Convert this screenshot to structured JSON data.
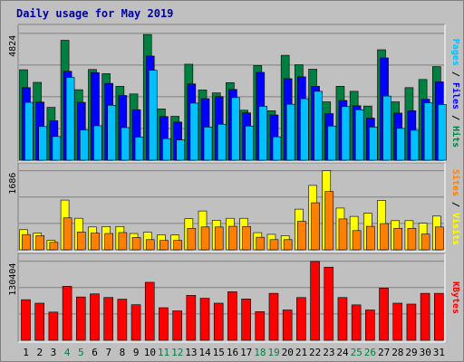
{
  "title": "Daily usage for May 2019",
  "colors": {
    "hits": "#008040",
    "files": "#0000ff",
    "pages": "#00c0ff",
    "visits": "#ffff00",
    "sites": "#ff8000",
    "kbytes": "#ff0000",
    "weekend_label": "#008040",
    "weekday_label": "#000000"
  },
  "chart_data": [
    {
      "type": "bar",
      "title": "",
      "y_max_label": "4824",
      "ylim": [
        0,
        4824
      ],
      "categories": [
        "1",
        "2",
        "3",
        "4",
        "5",
        "6",
        "7",
        "8",
        "9",
        "10",
        "11",
        "12",
        "13",
        "14",
        "15",
        "16",
        "17",
        "18",
        "19",
        "20",
        "21",
        "22",
        "23",
        "24",
        "25",
        "26",
        "27",
        "28",
        "29",
        "30",
        "31"
      ],
      "legend": [
        "Pages",
        "Files",
        "Hits"
      ],
      "series": [
        {
          "name": "Hits",
          "values": [
            3440,
            2960,
            2010,
            4560,
            2680,
            3450,
            3290,
            2810,
            2520,
            4780,
            1950,
            1670,
            3650,
            2670,
            2560,
            2950,
            1900,
            3600,
            1880,
            3990,
            3630,
            3460,
            2220,
            2810,
            2620,
            2060,
            4200,
            2220,
            2760,
            3070,
            3560
          ]
        },
        {
          "name": "Files",
          "values": [
            2760,
            2210,
            1500,
            3380,
            2200,
            3330,
            2920,
            2460,
            1920,
            3960,
            1660,
            1450,
            2900,
            2340,
            2420,
            2690,
            1800,
            3340,
            1720,
            3100,
            3170,
            2810,
            1770,
            2270,
            2070,
            1600,
            3890,
            1790,
            1880,
            2320,
            2980
          ]
        },
        {
          "name": "Pages",
          "values": [
            2200,
            1280,
            900,
            3150,
            1150,
            1310,
            2090,
            1240,
            880,
            3420,
            820,
            770,
            2170,
            1260,
            1370,
            2380,
            1300,
            2050,
            890,
            2130,
            2340,
            2620,
            1300,
            2040,
            1920,
            1260,
            2440,
            1210,
            1140,
            2180,
            2120
          ]
        }
      ]
    },
    {
      "type": "bar",
      "title": "",
      "y_max_label": "1686",
      "ylim": [
        0,
        1686
      ],
      "categories": [
        "1",
        "2",
        "3",
        "4",
        "5",
        "6",
        "7",
        "8",
        "9",
        "10",
        "11",
        "12",
        "13",
        "14",
        "15",
        "16",
        "17",
        "18",
        "19",
        "20",
        "21",
        "22",
        "23",
        "24",
        "25",
        "26",
        "27",
        "28",
        "29",
        "30",
        "31"
      ],
      "legend": [
        "Sites",
        "Visits"
      ],
      "series": [
        {
          "name": "Visits",
          "values": [
            428,
            356,
            200,
            1059,
            672,
            486,
            496,
            496,
            347,
            375,
            320,
            315,
            662,
            827,
            630,
            671,
            671,
            365,
            329,
            300,
            866,
            1372,
            1686,
            889,
            712,
            780,
            1052,
            621,
            621,
            567,
            718
          ]
        },
        {
          "name": "Sites",
          "values": [
            324,
            300,
            159,
            680,
            378,
            356,
            347,
            367,
            262,
            216,
            200,
            200,
            458,
            486,
            486,
            500,
            497,
            267,
            216,
            216,
            607,
            1002,
            1241,
            658,
            409,
            500,
            558,
            458,
            458,
            335,
            486
          ]
        }
      ]
    },
    {
      "type": "bar",
      "title": "",
      "y_max_label": "130404",
      "ylim": [
        0,
        130404
      ],
      "categories": [
        "1",
        "2",
        "3",
        "4",
        "5",
        "6",
        "7",
        "8",
        "9",
        "10",
        "11",
        "12",
        "13",
        "14",
        "15",
        "16",
        "17",
        "18",
        "19",
        "20",
        "21",
        "22",
        "23",
        "24",
        "25",
        "26",
        "27",
        "28",
        "29",
        "30",
        "31"
      ],
      "legend": [
        "KBytes"
      ],
      "series": [
        {
          "name": "KBytes",
          "values": [
            66900,
            61200,
            46500,
            89000,
            71400,
            76500,
            70600,
            67800,
            58700,
            95600,
            53700,
            48500,
            74000,
            69300,
            61200,
            80000,
            68100,
            47300,
            77400,
            50000,
            70500,
            130000,
            120500,
            70500,
            58400,
            50000,
            86200,
            61200,
            59700,
            77400,
            77400
          ]
        }
      ]
    }
  ],
  "x_labels": [
    {
      "text": "1",
      "weekend": false
    },
    {
      "text": "2",
      "weekend": false
    },
    {
      "text": "3",
      "weekend": false
    },
    {
      "text": "4",
      "weekend": true
    },
    {
      "text": "5",
      "weekend": true
    },
    {
      "text": "6",
      "weekend": false
    },
    {
      "text": "7",
      "weekend": false
    },
    {
      "text": "8",
      "weekend": false
    },
    {
      "text": "9",
      "weekend": false
    },
    {
      "text": "10",
      "weekend": false
    },
    {
      "text": "11",
      "weekend": true
    },
    {
      "text": "12",
      "weekend": true
    },
    {
      "text": "13",
      "weekend": false
    },
    {
      "text": "14",
      "weekend": false
    },
    {
      "text": "15",
      "weekend": false
    },
    {
      "text": "16",
      "weekend": false
    },
    {
      "text": "17",
      "weekend": false
    },
    {
      "text": "18",
      "weekend": true
    },
    {
      "text": "19",
      "weekend": true
    },
    {
      "text": "20",
      "weekend": false
    },
    {
      "text": "21",
      "weekend": false
    },
    {
      "text": "22",
      "weekend": false
    },
    {
      "text": "23",
      "weekend": false
    },
    {
      "text": "24",
      "weekend": false
    },
    {
      "text": "25",
      "weekend": true
    },
    {
      "text": "26",
      "weekend": true
    },
    {
      "text": "27",
      "weekend": false
    },
    {
      "text": "28",
      "weekend": false
    },
    {
      "text": "29",
      "weekend": false
    },
    {
      "text": "30",
      "weekend": false
    },
    {
      "text": "31",
      "weekend": false
    }
  ],
  "right_labels": {
    "top": [
      {
        "text": "Pages",
        "color": "#00c0ff"
      },
      {
        "text": " / ",
        "color": "#000000"
      },
      {
        "text": "Files",
        "color": "#0000ff"
      },
      {
        "text": " / ",
        "color": "#000000"
      },
      {
        "text": "Hits",
        "color": "#008040"
      }
    ],
    "middle": [
      {
        "text": "Sites",
        "color": "#ff8000"
      },
      {
        "text": " / ",
        "color": "#000000"
      },
      {
        "text": "Visits",
        "color": "#ffff00"
      }
    ],
    "bottom": [
      {
        "text": "KBytes",
        "color": "#ff0000"
      }
    ]
  }
}
